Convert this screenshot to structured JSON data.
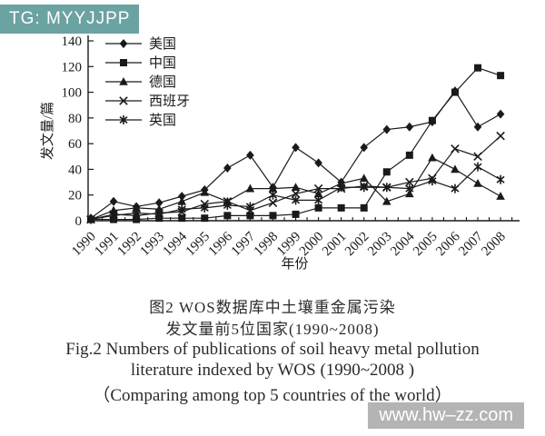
{
  "watermarks": {
    "top_left": "TG: MYYJJPP",
    "top_left_bg": "#6ba2a2",
    "bottom_right": "www.hw–zz.com",
    "bottom_right_bg": "#b4b4b4"
  },
  "caption": {
    "cn_line1": "图2  WOS数据库中土壤重金属污染",
    "cn_line2": "发文量前5位国家(1990~2008)",
    "en_line1": "Fig.2  Numbers of publications of soil heavy metal pollution",
    "en_line2": "literature indexed by WOS (1990~2008 )",
    "en_line3": "（Comparing among top 5 countries of the world）"
  },
  "chart_data": {
    "type": "line",
    "title": "",
    "xlabel": "年份",
    "ylabel": "发文量/篇",
    "x": [
      1990,
      1991,
      1992,
      1993,
      1994,
      1995,
      1996,
      1997,
      1998,
      1999,
      2000,
      2001,
      2002,
      2003,
      2004,
      2005,
      2006,
      2007,
      2008
    ],
    "ylim": [
      0,
      140
    ],
    "ytick_step": 20,
    "grid": false,
    "legend_position": "top-left-inside",
    "line_color": "#1a1a1a",
    "series": [
      {
        "name": "美国",
        "marker": "diamond",
        "values": [
          2,
          15,
          11,
          14,
          19,
          24,
          41,
          51,
          26,
          57,
          45,
          30,
          57,
          71,
          73,
          77,
          101,
          73,
          83
        ]
      },
      {
        "name": "中国",
        "marker": "square",
        "values": [
          1,
          1,
          1,
          2,
          2,
          2,
          4,
          4,
          4,
          5,
          10,
          10,
          10,
          38,
          51,
          78,
          100,
          119,
          113
        ]
      },
      {
        "name": "德国",
        "marker": "triangle",
        "values": [
          1,
          8,
          10,
          9,
          15,
          22,
          15,
          25,
          25,
          26,
          21,
          29,
          33,
          15,
          21,
          49,
          40,
          29,
          19
        ]
      },
      {
        "name": "西班牙",
        "marker": "x",
        "values": [
          1,
          5,
          4,
          6,
          7,
          13,
          15,
          8,
          14,
          21,
          25,
          25,
          27,
          26,
          30,
          33,
          56,
          50,
          66
        ]
      },
      {
        "name": "英国",
        "marker": "asterisk",
        "values": [
          1,
          4,
          6,
          5,
          9,
          10,
          12,
          11,
          20,
          16,
          16,
          26,
          26,
          26,
          25,
          31,
          25,
          42,
          32
        ]
      }
    ]
  }
}
